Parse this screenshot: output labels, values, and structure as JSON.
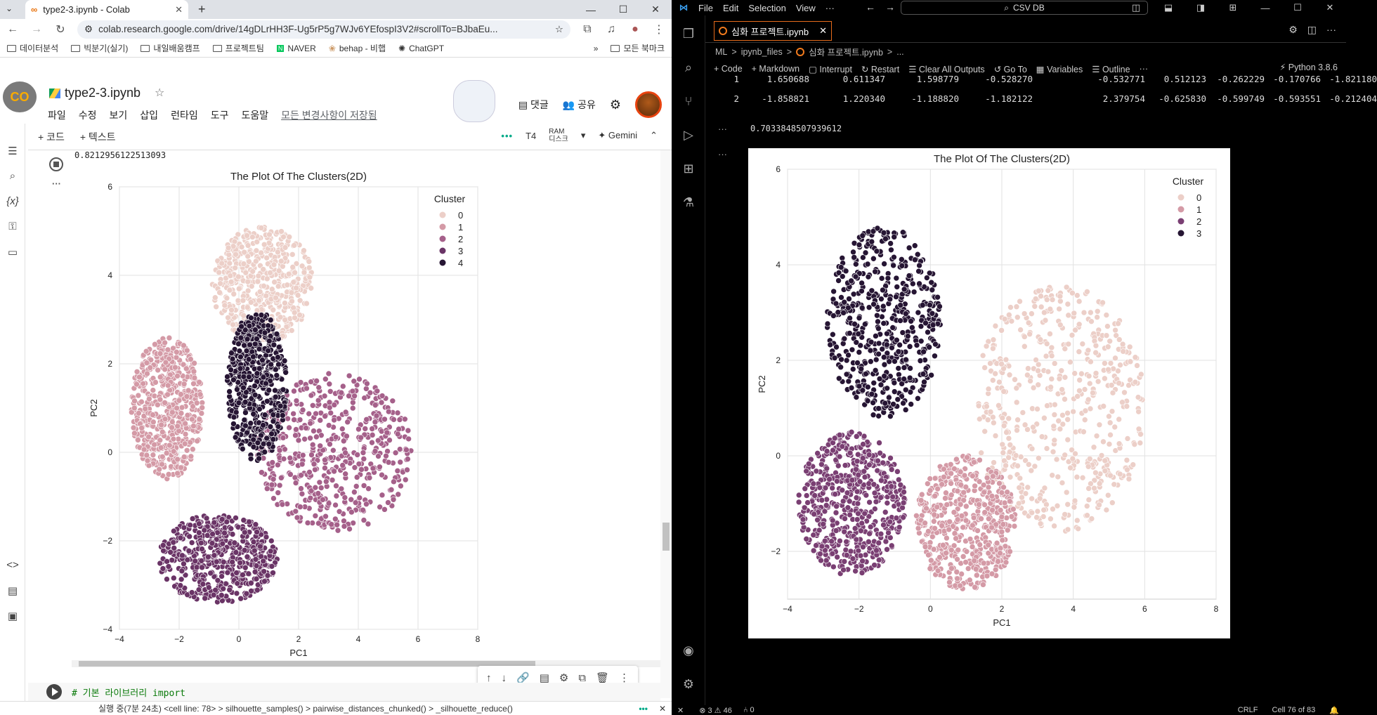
{
  "browser": {
    "tab_title": "type2-3.ipynb - Colab",
    "url": "colab.research.google.com/drive/14gDLrHH3F-Ug5rP5g7WJv6YEfospI3V2#scrollTo=BJbaEu...",
    "bookmarks": [
      "데이터분석",
      "빅분기(실기)",
      "내일배움캠프",
      "프로젝트팀",
      "NAVER",
      "behap - 비햅",
      "ChatGPT"
    ],
    "all_bookmarks": "모든 북마크"
  },
  "colab": {
    "title": "type2-3.ipynb",
    "menu": [
      "파일",
      "수정",
      "보기",
      "삽입",
      "런타임",
      "도구",
      "도움말"
    ],
    "saved_status": "모든 변경사항이 저장됨",
    "comment_label": "댓글",
    "share_label": "공유",
    "add_code": "+ 코드",
    "add_text": "+ 텍스트",
    "runtime": "T4",
    "ram_label": "RAM",
    "disk_label": "디스크",
    "gemini": "Gemini",
    "output_value": "0.8212956122513093",
    "next_cell_code": "# 기본 라이브러리 import",
    "status_text": "실행 중(7분 24초) <cell line: 78> > silhouette_samples() > pairwise_distances_chunked() > _silhouette_reduce()"
  },
  "vscode": {
    "menu": [
      "File",
      "Edit",
      "Selection",
      "View",
      "···"
    ],
    "search": "CSV DB",
    "tab_title": "심화 프로젝트.ipynb",
    "breadcrumb": [
      "ML",
      ">",
      "ipynb_files",
      ">",
      "심화 프로젝트.ipynb",
      ">",
      "..."
    ],
    "toolbar": [
      "+ Code",
      "+ Markdown",
      "Interrupt",
      "Restart",
      "Clear All Outputs",
      "Go To",
      "Variables",
      "Outline",
      "···"
    ],
    "kernel": "Python 3.8.6",
    "table_rows": [
      [
        "1",
        "1.650688",
        "0.611347",
        "1.598779",
        "-0.528270",
        "-0.532771",
        "0.512123",
        "-0.262229",
        "-0.170766",
        "-1.821180"
      ],
      [
        "2",
        "-1.858821",
        "1.220340",
        "-1.188820",
        "-1.182122",
        "2.379754",
        "-0.625830",
        "-0.599749",
        "-0.593551",
        "-0.212404"
      ]
    ],
    "output_value": "0.7033848507939612",
    "status_left": "⊗ 3 ⚠ 46",
    "status_ports": "⑃ 0",
    "status_crlf": "CRLF",
    "status_cell": "Cell 76 of 83"
  },
  "chart_data": [
    {
      "type": "scatter",
      "title": "The Plot Of The Clusters(2D)",
      "xlabel": "PC1",
      "ylabel": "PC2",
      "xlim": [
        -4,
        8
      ],
      "ylim": [
        -4,
        6
      ],
      "xticks": [
        -4,
        -2,
        0,
        2,
        4,
        6,
        8
      ],
      "yticks": [
        -4,
        -2,
        0,
        2,
        4,
        6
      ],
      "legend_title": "Cluster",
      "legend_position": "top-right",
      "series": [
        {
          "name": "0",
          "color": "#eccfc8",
          "region": {
            "cx": 0.8,
            "cy": 3.8,
            "rx": 1.7,
            "ry": 1.3
          }
        },
        {
          "name": "1",
          "color": "#d49aa6",
          "region": {
            "cx": -2.4,
            "cy": 1.0,
            "rx": 1.2,
            "ry": 1.6
          }
        },
        {
          "name": "2",
          "color": "#a5608a",
          "region": {
            "cx": 3.2,
            "cy": 0.0,
            "rx": 2.6,
            "ry": 1.8
          }
        },
        {
          "name": "3",
          "color": "#6a3466",
          "region": {
            "cx": -0.7,
            "cy": -2.4,
            "rx": 2.0,
            "ry": 1.0
          }
        },
        {
          "name": "4",
          "color": "#261533",
          "region": {
            "cx": 0.6,
            "cy": 1.5,
            "rx": 1.0,
            "ry": 1.7
          }
        }
      ]
    },
    {
      "type": "scatter",
      "title": "The Plot Of The Clusters(2D)",
      "xlabel": "PC1",
      "ylabel": "PC2",
      "xlim": [
        -4,
        8
      ],
      "ylim": [
        -3,
        6
      ],
      "xticks": [
        -4,
        -2,
        0,
        2,
        4,
        6,
        8
      ],
      "yticks": [
        -2,
        0,
        2,
        4,
        6
      ],
      "legend_title": "Cluster",
      "legend_position": "top-right",
      "series": [
        {
          "name": "0",
          "color": "#eccfc8",
          "region": {
            "cx": 3.6,
            "cy": 1.0,
            "rx": 2.4,
            "ry": 2.6
          }
        },
        {
          "name": "1",
          "color": "#d49aa6",
          "region": {
            "cx": 1.0,
            "cy": -1.4,
            "rx": 1.4,
            "ry": 1.4
          }
        },
        {
          "name": "2",
          "color": "#7a3f73",
          "region": {
            "cx": -2.2,
            "cy": -1.0,
            "rx": 1.5,
            "ry": 1.5
          }
        },
        {
          "name": "3",
          "color": "#261533",
          "region": {
            "cx": -1.3,
            "cy": 2.8,
            "rx": 1.6,
            "ry": 2.0
          }
        }
      ]
    }
  ]
}
